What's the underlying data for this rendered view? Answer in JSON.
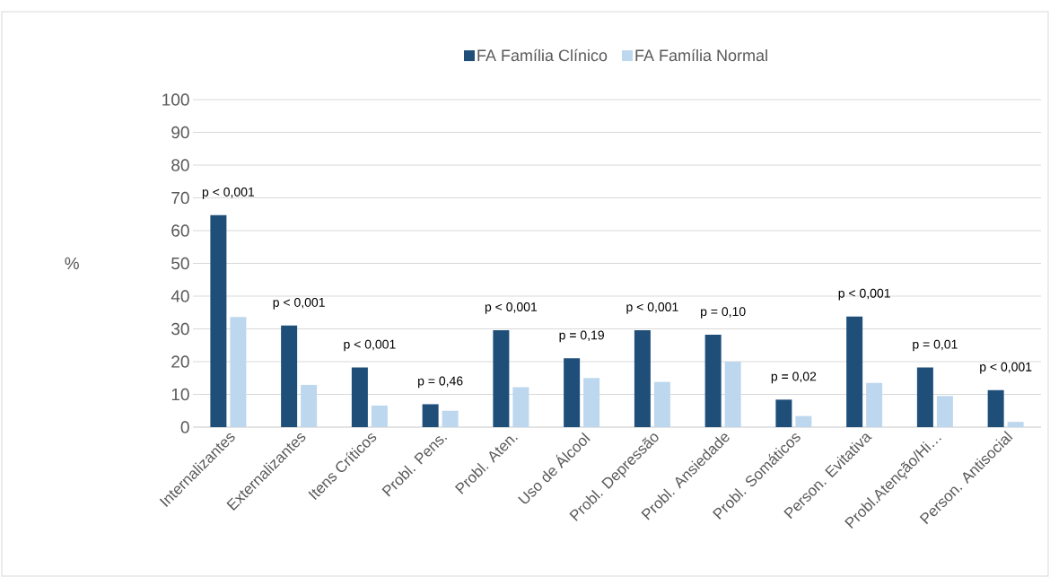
{
  "chart_data": {
    "type": "bar",
    "ylabel": "%",
    "categories": [
      "Internalizantes",
      "Externalizantes",
      "Itens Críticos",
      "Probl. Pens.",
      "Probl. Aten.",
      "Uso de Álcool",
      "Probl. Depressão",
      "Probl. Ansiedade",
      "Probl. Somáticos",
      "Person. Evitativa",
      "Probl.Atenção/Hi…",
      "Person. Antisocial"
    ],
    "series": [
      {
        "name": "FA Família Clínico",
        "color": "#1f4e79",
        "values": [
          64.7,
          31,
          18.2,
          7,
          29.6,
          21,
          29.6,
          28.2,
          8.4,
          33.8,
          18.2,
          11.3
        ]
      },
      {
        "name": "FA Família Normal",
        "color": "#bdd7ee",
        "values": [
          33.6,
          12.9,
          6.6,
          5,
          12.2,
          15,
          13.8,
          20,
          3.4,
          13.5,
          9.5,
          1.6
        ]
      }
    ],
    "ylim": [
      0,
      100
    ],
    "yticks": [
      0,
      10,
      20,
      30,
      40,
      50,
      60,
      70,
      80,
      90,
      100
    ],
    "grid": "y",
    "legend": "top",
    "annotations": [
      "p < 0,001",
      "p < 0,001",
      "p < 0,001",
      "p = 0,46",
      "p < 0,001",
      "p = 0,19",
      "p < 0,001",
      "p = 0,10",
      "p = 0,02",
      "p < 0,001",
      "p = 0,01",
      "p < 0,001"
    ]
  }
}
